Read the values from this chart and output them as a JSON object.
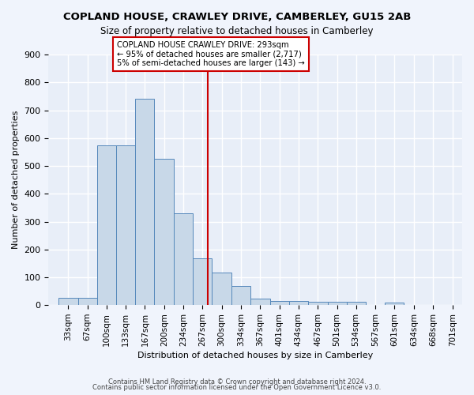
{
  "title": "COPLAND HOUSE, CRAWLEY DRIVE, CAMBERLEY, GU15 2AB",
  "subtitle": "Size of property relative to detached houses in Camberley",
  "xlabel": "Distribution of detached houses by size in Camberley",
  "ylabel": "Number of detached properties",
  "bar_color": "#c8d8e8",
  "bar_edge_color": "#5588bb",
  "background_color": "#e8eef8",
  "grid_color": "#ffffff",
  "red_line_x": 293,
  "annotation_text": "COPLAND HOUSE CRAWLEY DRIVE: 293sqm\n← 95% of detached houses are smaller (2,717)\n5% of semi-detached houses are larger (143) →",
  "annotation_box_color": "#ffffff",
  "annotation_box_edge": "#cc0000",
  "categories": [
    "33sqm",
    "67sqm",
    "100sqm",
    "133sqm",
    "167sqm",
    "200sqm",
    "234sqm",
    "267sqm",
    "300sqm",
    "334sqm",
    "367sqm",
    "401sqm",
    "434sqm",
    "467sqm",
    "501sqm",
    "534sqm",
    "567sqm",
    "601sqm",
    "634sqm",
    "668sqm",
    "701sqm"
  ],
  "values": [
    27,
    27,
    575,
    575,
    740,
    525,
    330,
    168,
    118,
    70,
    22,
    14,
    14,
    12,
    12,
    12,
    0,
    10,
    0,
    0,
    0
  ],
  "bin_edges": [
    33,
    67,
    100,
    133,
    167,
    200,
    234,
    267,
    300,
    334,
    367,
    401,
    434,
    467,
    501,
    534,
    567,
    601,
    634,
    668,
    701,
    735
  ],
  "ylim": [
    0,
    900
  ],
  "yticks": [
    0,
    100,
    200,
    300,
    400,
    500,
    600,
    700,
    800,
    900
  ],
  "footer1": "Contains HM Land Registry data © Crown copyright and database right 2024.",
  "footer2": "Contains public sector information licensed under the Open Government Licence v3.0."
}
